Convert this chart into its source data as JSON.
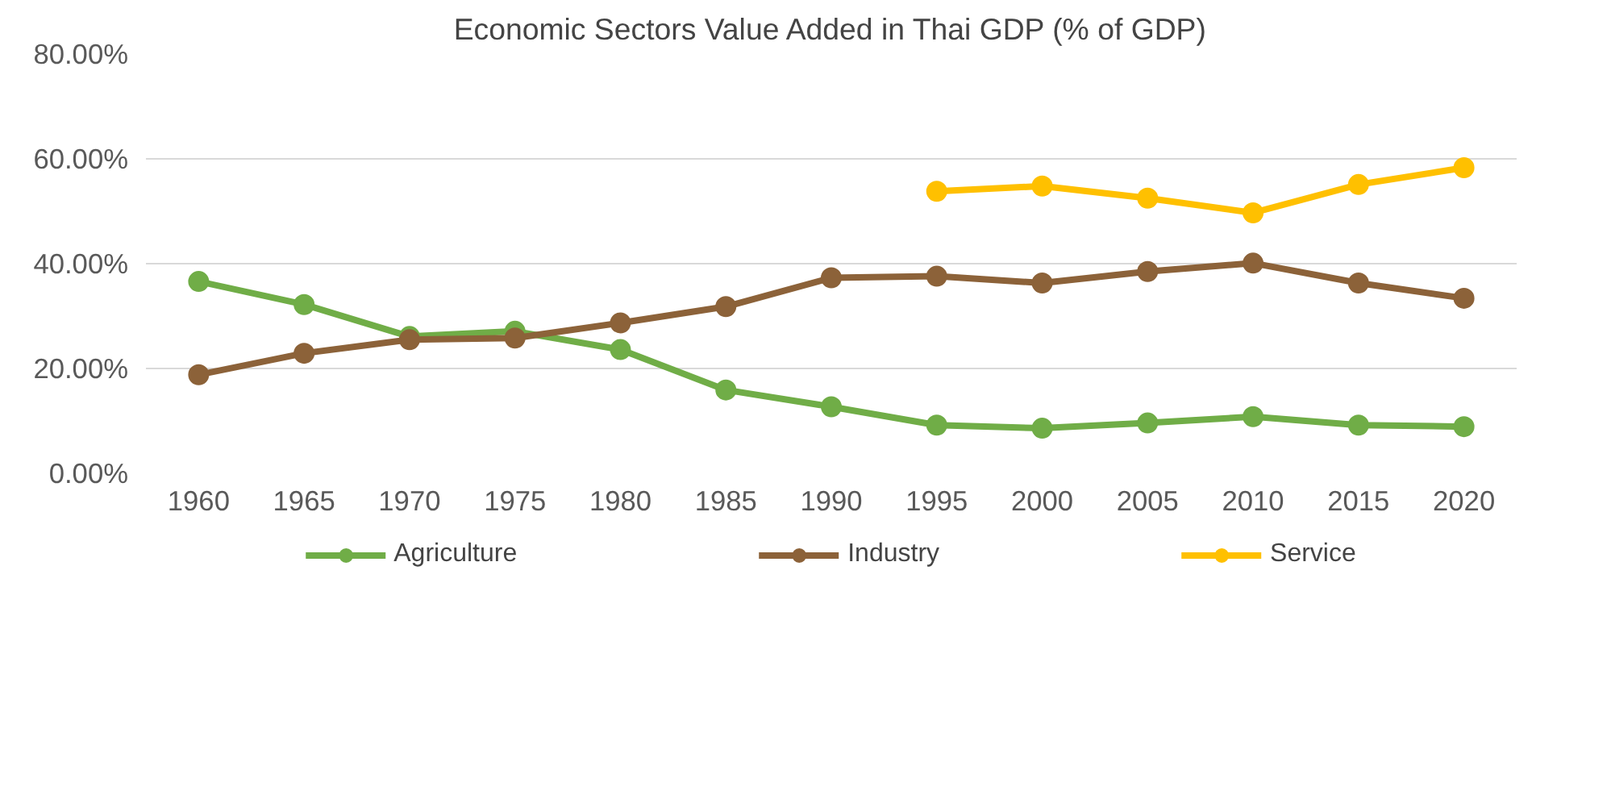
{
  "chart_data": {
    "type": "line",
    "title": "Economic Sectors Value Added in Thai GDP (% of GDP)",
    "categories": [
      "1960",
      "1965",
      "1970",
      "1975",
      "1980",
      "1985",
      "1990",
      "1995",
      "2000",
      "2005",
      "2010",
      "2015",
      "2020"
    ],
    "series": [
      {
        "name": "Agriculture",
        "color": "#70ad47",
        "values": [
          36.6,
          32.2,
          26.1,
          27.1,
          23.6,
          15.9,
          12.7,
          9.2,
          8.6,
          9.6,
          10.8,
          9.2,
          8.9
        ]
      },
      {
        "name": "Industry",
        "color": "#8c6239",
        "values": [
          18.8,
          22.9,
          25.5,
          25.8,
          28.7,
          31.8,
          37.3,
          37.6,
          36.3,
          38.5,
          40.1,
          36.3,
          33.4
        ]
      },
      {
        "name": "Service",
        "color": "#ffc000",
        "values": [
          null,
          null,
          null,
          null,
          null,
          null,
          null,
          53.8,
          54.8,
          52.5,
          49.7,
          55.1,
          58.3
        ]
      }
    ],
    "ylim": [
      0,
      80
    ],
    "yticks": [
      {
        "value": 0,
        "label": "0.00%"
      },
      {
        "value": 20,
        "label": "20.00%"
      },
      {
        "value": 40,
        "label": "40.00%"
      },
      {
        "value": 60,
        "label": "60.00%"
      },
      {
        "value": 80,
        "label": "80.00%"
      }
    ],
    "grid": "y",
    "legend": "bottom",
    "marker": "circle",
    "line_style": "solid"
  }
}
